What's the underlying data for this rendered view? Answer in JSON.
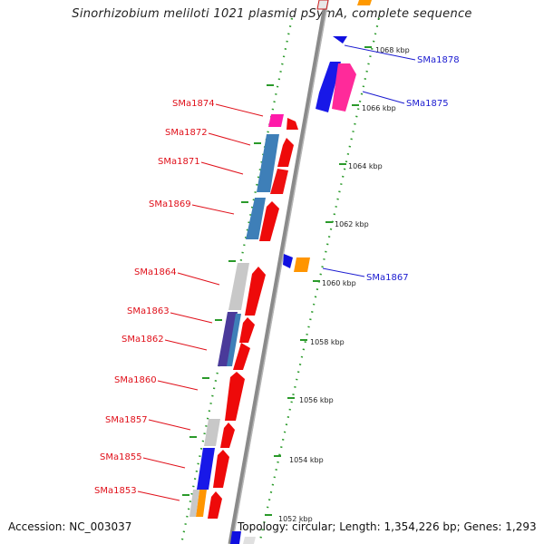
{
  "title": "Sinorhizobium meliloti 1021 plasmid pSymA, complete sequence",
  "footer": {
    "accession": "Accession: NC_003037",
    "summary": "Topology: circular; Length: 1,354,226 bp; Genes: 1,293"
  },
  "colors": {
    "axis": "#888888",
    "tick": "#2a9a2a",
    "forward_label": "#e0101a",
    "reverse_label": "#1a1ad0"
  },
  "scale_labels": [
    "1068 kbp",
    "1066 kbp",
    "1064 kbp",
    "1062 kbp",
    "1060 kbp",
    "1058 kbp",
    "1056 kbp",
    "1054 kbp",
    "1052 kbp"
  ],
  "reverse_genes": [
    "SMa1878",
    "SMa1875",
    "SMa1867"
  ],
  "forward_genes": [
    "SMa1874",
    "SMa1872",
    "SMa1871",
    "SMa1869",
    "SMa1864",
    "SMa1863",
    "SMa1862",
    "SMa1860",
    "SMa1857",
    "SMa1855",
    "SMa1853"
  ]
}
